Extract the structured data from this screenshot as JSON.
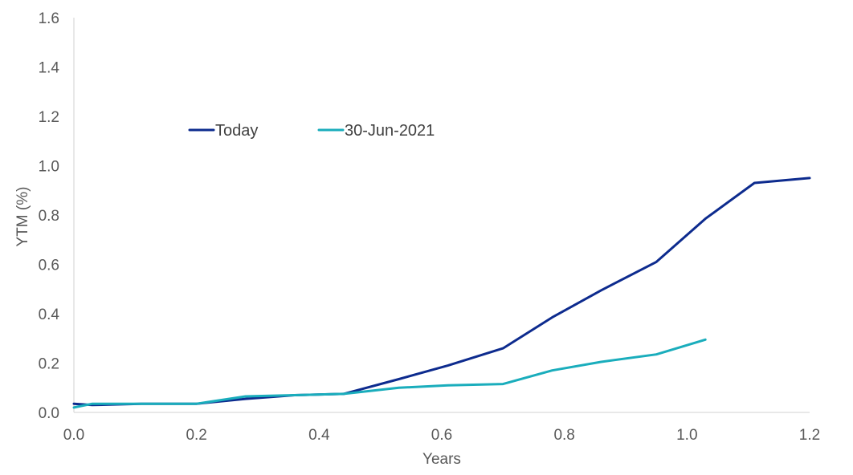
{
  "chart_data": {
    "type": "line",
    "title": "",
    "xlabel": "Years",
    "ylabel": "YTM (%)",
    "xlim": [
      0.0,
      1.2
    ],
    "ylim": [
      0.0,
      1.6
    ],
    "x_ticks": [
      "0.0",
      "0.2",
      "0.4",
      "0.6",
      "0.8",
      "1.0",
      "1.2"
    ],
    "y_ticks": [
      "0.0",
      "0.2",
      "0.4",
      "0.6",
      "0.8",
      "1.0",
      "1.2",
      "1.4",
      "1.6"
    ],
    "grid": false,
    "legend_position": "upper-left-inside",
    "series": [
      {
        "name": "Today",
        "color": "#0D2B8E",
        "x": [
          0.0,
          0.03,
          0.11,
          0.2,
          0.28,
          0.36,
          0.44,
          0.53,
          0.61,
          0.7,
          0.78,
          0.86,
          0.95,
          1.03,
          1.11,
          1.2
        ],
        "y": [
          0.035,
          0.03,
          0.035,
          0.035,
          0.055,
          0.07,
          0.075,
          0.135,
          0.19,
          0.26,
          0.385,
          0.495,
          0.61,
          0.785,
          0.93,
          0.95
        ]
      },
      {
        "name": "30-Jun-2021",
        "color": "#1AADBC",
        "x": [
          0.0,
          0.03,
          0.11,
          0.2,
          0.28,
          0.36,
          0.44,
          0.53,
          0.61,
          0.7,
          0.78,
          0.86,
          0.95,
          1.03
        ],
        "y": [
          0.02,
          0.035,
          0.035,
          0.035,
          0.065,
          0.07,
          0.075,
          0.1,
          0.11,
          0.115,
          0.17,
          0.205,
          0.235,
          0.295
        ]
      }
    ]
  }
}
